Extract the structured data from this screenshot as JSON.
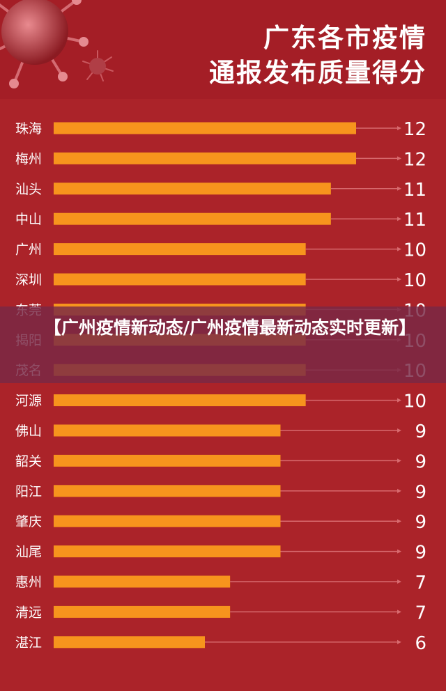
{
  "title": {
    "line1": "广东各市疫情",
    "line2": "通报发布质量得分"
  },
  "overlay": {
    "text": "【广州疫情新动态/广州疫情最新动态实时更新】"
  },
  "colors": {
    "background": "#ab2329",
    "header": "#a41e26",
    "bar": "#f7941d",
    "text": "#ffffff",
    "overlay": "#782846"
  },
  "chart_data": {
    "type": "bar",
    "orientation": "horizontal",
    "categories": [
      "珠海",
      "梅州",
      "汕头",
      "中山",
      "广州",
      "深圳",
      "东莞",
      "揭阳",
      "茂名",
      "河源",
      "佛山",
      "韶关",
      "阳江",
      "肇庆",
      "汕尾",
      "惠州",
      "清远",
      "湛江"
    ],
    "values": [
      12,
      12,
      11,
      11,
      10,
      10,
      10,
      10,
      10,
      10,
      9,
      9,
      9,
      9,
      9,
      7,
      7,
      6
    ],
    "data_labels": [
      "12",
      "12",
      "11",
      "11",
      "10",
      "10",
      "10",
      "10",
      "10",
      "10",
      "9",
      "9",
      "9",
      "9",
      "9",
      "7",
      "7",
      "6"
    ],
    "xlim": [
      0,
      12
    ],
    "grid": false,
    "legend": "none"
  }
}
